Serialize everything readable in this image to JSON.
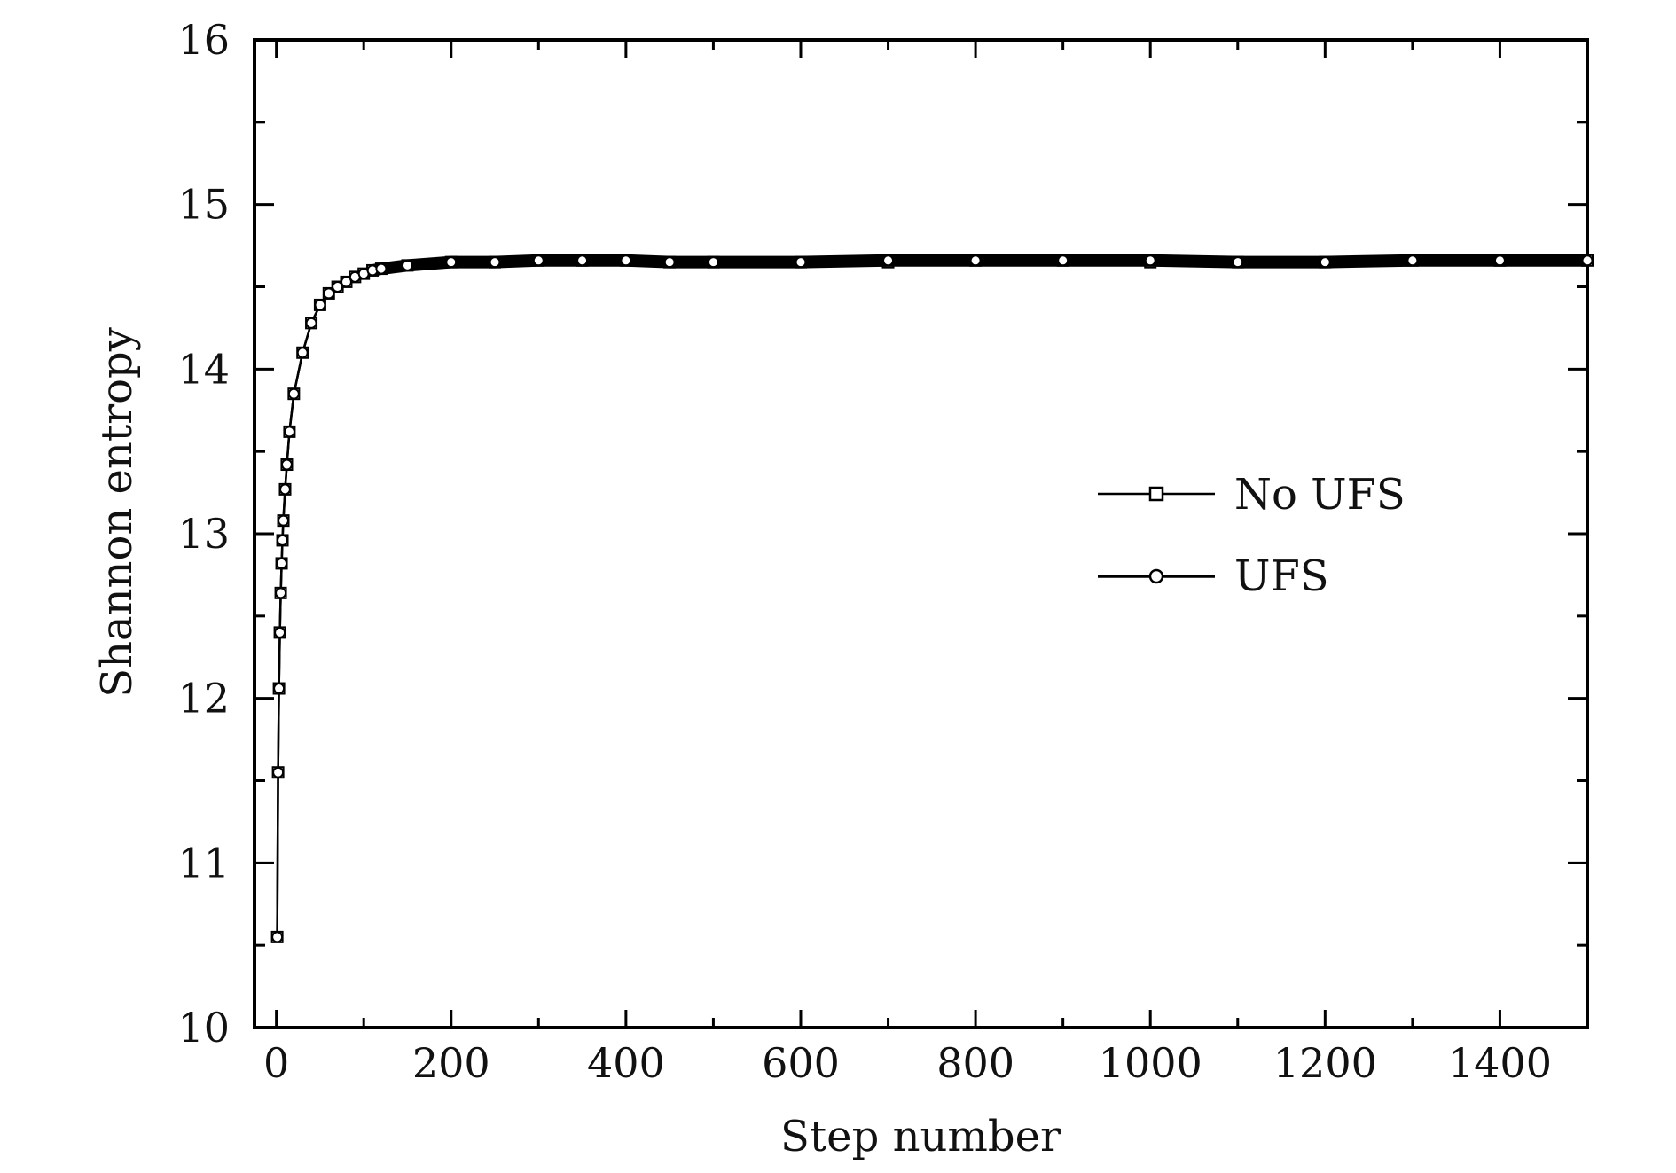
{
  "chart_data": {
    "type": "line",
    "title": "",
    "xlabel": "Step number",
    "ylabel": "Shannon entropy",
    "xlim": [
      -25,
      1500
    ],
    "ylim": [
      10,
      16
    ],
    "x_ticks": [
      0,
      200,
      400,
      600,
      800,
      1000,
      1200,
      1400
    ],
    "y_ticks": [
      10,
      11,
      12,
      13,
      14,
      15,
      16
    ],
    "x_tick_labels": [
      "0",
      "200",
      "400",
      "600",
      "800",
      "1000",
      "1200",
      "1400"
    ],
    "y_tick_labels": [
      "10",
      "11",
      "12",
      "13",
      "14",
      "15",
      "16"
    ],
    "grid": false,
    "legend_position": "center-right",
    "series": [
      {
        "name": "No UFS",
        "marker": "square",
        "color": "#000000",
        "x": [
          1,
          2,
          3,
          4,
          5,
          6,
          7,
          8,
          10,
          12,
          15,
          20,
          30,
          40,
          50,
          60,
          70,
          80,
          90,
          100,
          110,
          120,
          150,
          200,
          250,
          300,
          350,
          400,
          450,
          500,
          600,
          700,
          800,
          900,
          1000,
          1100,
          1200,
          1300,
          1400,
          1500
        ],
        "values": [
          10.55,
          11.55,
          12.06,
          12.4,
          12.64,
          12.82,
          12.96,
          13.08,
          13.27,
          13.42,
          13.62,
          13.85,
          14.1,
          14.28,
          14.39,
          14.46,
          14.5,
          14.53,
          14.56,
          14.58,
          14.6,
          14.61,
          14.63,
          14.65,
          14.65,
          14.66,
          14.66,
          14.66,
          14.65,
          14.65,
          14.65,
          14.65,
          14.66,
          14.66,
          14.65,
          14.65,
          14.65,
          14.66,
          14.66,
          14.66
        ]
      },
      {
        "name": "UFS",
        "marker": "circle",
        "color": "#000000",
        "x": [
          1,
          2,
          3,
          4,
          5,
          6,
          7,
          8,
          10,
          12,
          15,
          20,
          30,
          40,
          50,
          60,
          70,
          80,
          90,
          100,
          110,
          120,
          150,
          200,
          250,
          300,
          350,
          400,
          450,
          500,
          600,
          700,
          800,
          900,
          1000,
          1100,
          1200,
          1300,
          1400,
          1500
        ],
        "values": [
          10.55,
          11.55,
          12.06,
          12.4,
          12.64,
          12.82,
          12.96,
          13.08,
          13.27,
          13.42,
          13.62,
          13.85,
          14.1,
          14.28,
          14.39,
          14.46,
          14.5,
          14.53,
          14.56,
          14.58,
          14.6,
          14.61,
          14.63,
          14.65,
          14.65,
          14.66,
          14.66,
          14.66,
          14.65,
          14.65,
          14.65,
          14.66,
          14.66,
          14.66,
          14.66,
          14.65,
          14.65,
          14.66,
          14.66,
          14.66
        ]
      }
    ]
  }
}
